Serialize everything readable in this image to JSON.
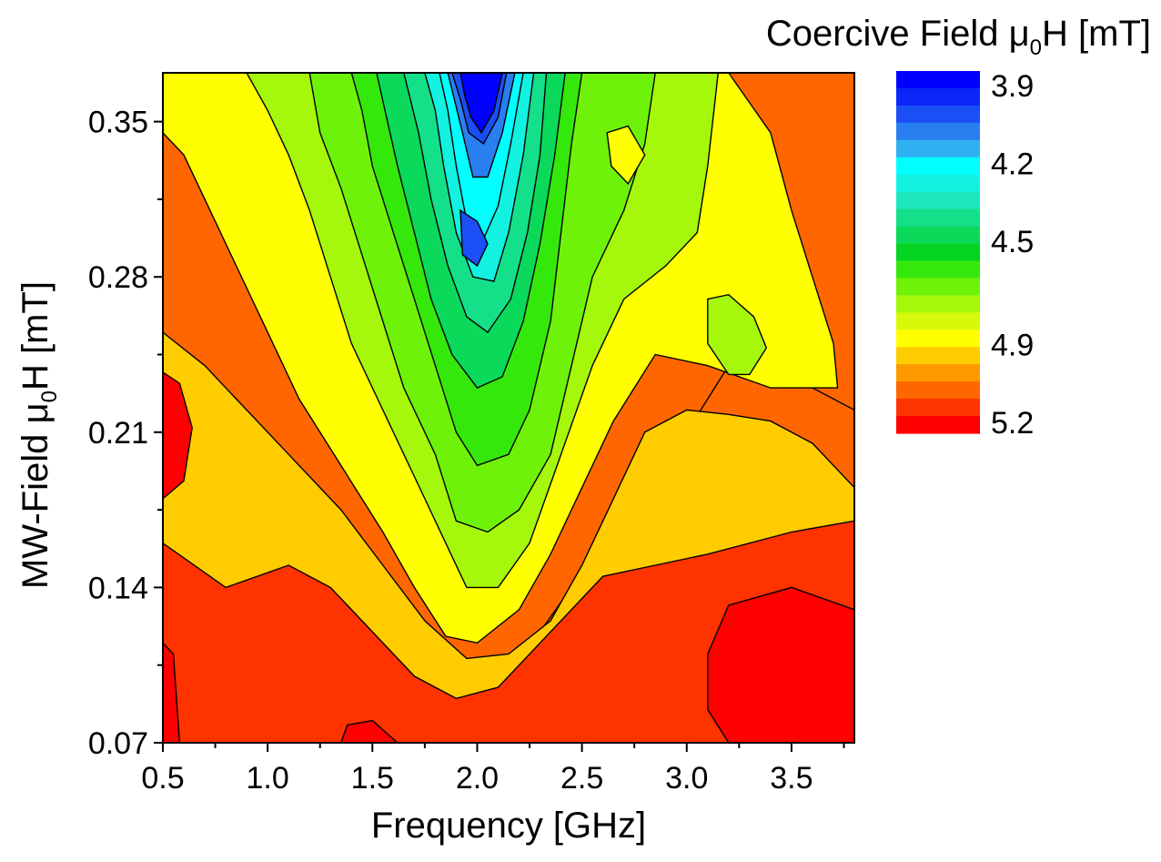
{
  "chart_data": {
    "type": "contour",
    "xlabel": "Frequency [GHz]",
    "ylabel": "MW-Field μ0H [mT]",
    "ylabel_parts": {
      "pre": "MW-Field μ",
      "sub": "0",
      "post": "H [mT]"
    },
    "xlim": [
      0.5,
      3.8
    ],
    "ylim": [
      0.07,
      0.372
    ],
    "xticks": [
      "0.5",
      "1.0",
      "1.5",
      "2.0",
      "2.5",
      "3.0",
      "3.5"
    ],
    "yticks": [
      "0.07",
      "0.14",
      "0.21",
      "0.28",
      "0.35"
    ],
    "colorbar": {
      "title": "Coercive Field μ0H [mT]",
      "title_parts": {
        "pre": "Coercive Field μ",
        "sub": "0",
        "post": "H [mT]"
      },
      "tick_labels": [
        "3.9",
        "4.2",
        "4.5",
        "4.9",
        "5.2"
      ],
      "range": [
        3.9,
        5.2
      ],
      "levels": 21,
      "colors": [
        "#0000ff",
        "#0c25f9",
        "#1b4ef4",
        "#2a7ff0",
        "#2fb0f1",
        "#00ffff",
        "#13f2e0",
        "#1ee7bd",
        "#14e08a",
        "#0ad95a",
        "#05d420",
        "#35e80c",
        "#6ef20a",
        "#a5f70b",
        "#d7fa0b",
        "#ffff00",
        "#ffcc00",
        "#ff9900",
        "#ff6600",
        "#ff3300",
        "#ff0000"
      ]
    },
    "regions": [
      {
        "level": 5.05,
        "path": [
          [
            0.5,
            0.07
          ],
          [
            3.8,
            0.07
          ],
          [
            3.8,
            0.22
          ],
          [
            3.6,
            0.23
          ],
          [
            3.4,
            0.25
          ],
          [
            3.2,
            0.24
          ],
          [
            3.0,
            0.21
          ],
          [
            2.8,
            0.19
          ],
          [
            2.6,
            0.16
          ],
          [
            2.45,
            0.14
          ],
          [
            2.3,
            0.12
          ],
          [
            2.1,
            0.1
          ],
          [
            1.9,
            0.1
          ],
          [
            1.7,
            0.11
          ],
          [
            1.5,
            0.13
          ],
          [
            1.3,
            0.16
          ],
          [
            1.0,
            0.18
          ],
          [
            0.8,
            0.2
          ],
          [
            0.5,
            0.21
          ]
        ]
      },
      {
        "level": 4.95,
        "path": [
          [
            0.5,
            0.07
          ],
          [
            3.8,
            0.07
          ],
          [
            3.8,
            0.185
          ],
          [
            3.6,
            0.205
          ],
          [
            3.4,
            0.215
          ],
          [
            3.2,
            0.218
          ],
          [
            3.0,
            0.22
          ],
          [
            2.8,
            0.21
          ],
          [
            2.65,
            0.18
          ],
          [
            2.5,
            0.15
          ],
          [
            2.35,
            0.125
          ],
          [
            2.15,
            0.11
          ],
          [
            1.95,
            0.108
          ],
          [
            1.75,
            0.125
          ],
          [
            1.55,
            0.15
          ],
          [
            1.35,
            0.175
          ],
          [
            1.1,
            0.2
          ],
          [
            0.9,
            0.22
          ],
          [
            0.7,
            0.24
          ],
          [
            0.5,
            0.255
          ]
        ]
      },
      {
        "level": 5.15,
        "path": [
          [
            0.5,
            0.07
          ],
          [
            3.8,
            0.07
          ],
          [
            3.8,
            0.17
          ],
          [
            3.5,
            0.165
          ],
          [
            3.1,
            0.155
          ],
          [
            2.85,
            0.15
          ],
          [
            2.6,
            0.145
          ],
          [
            2.35,
            0.12
          ],
          [
            2.1,
            0.095
          ],
          [
            1.9,
            0.09
          ],
          [
            1.7,
            0.1
          ],
          [
            1.5,
            0.12
          ],
          [
            1.3,
            0.14
          ],
          [
            1.1,
            0.15
          ],
          [
            0.8,
            0.14
          ],
          [
            0.5,
            0.16
          ]
        ]
      },
      {
        "level": 5.2,
        "path": [
          [
            3.2,
            0.07
          ],
          [
            3.8,
            0.07
          ],
          [
            3.8,
            0.13
          ],
          [
            3.5,
            0.14
          ],
          [
            3.2,
            0.132
          ],
          [
            3.1,
            0.11
          ],
          [
            3.1,
            0.085
          ]
        ]
      },
      {
        "level": 5.2,
        "path": [
          [
            1.35,
            0.07
          ],
          [
            1.62,
            0.07
          ],
          [
            1.5,
            0.08
          ],
          [
            1.38,
            0.078
          ]
        ]
      },
      {
        "level": 5.2,
        "path": [
          [
            0.5,
            0.18
          ],
          [
            0.6,
            0.188
          ],
          [
            0.64,
            0.212
          ],
          [
            0.58,
            0.232
          ],
          [
            0.5,
            0.237
          ]
        ]
      },
      {
        "level": 5.2,
        "path": [
          [
            0.5,
            0.07
          ],
          [
            0.58,
            0.07
          ],
          [
            0.55,
            0.11
          ],
          [
            0.5,
            0.115
          ]
        ]
      },
      {
        "level": 4.85,
        "path": [
          [
            0.6,
            0.372
          ],
          [
            3.2,
            0.372
          ],
          [
            3.4,
            0.345
          ],
          [
            3.5,
            0.31
          ],
          [
            3.6,
            0.28
          ],
          [
            3.7,
            0.25
          ],
          [
            3.72,
            0.23
          ],
          [
            3.4,
            0.23
          ],
          [
            3.1,
            0.24
          ],
          [
            2.85,
            0.245
          ],
          [
            2.65,
            0.215
          ],
          [
            2.5,
            0.185
          ],
          [
            2.35,
            0.155
          ],
          [
            2.2,
            0.13
          ],
          [
            2.0,
            0.115
          ],
          [
            1.85,
            0.118
          ],
          [
            1.7,
            0.14
          ],
          [
            1.55,
            0.165
          ],
          [
            1.35,
            0.195
          ],
          [
            1.15,
            0.225
          ],
          [
            1.0,
            0.255
          ],
          [
            0.85,
            0.285
          ],
          [
            0.7,
            0.315
          ],
          [
            0.6,
            0.335
          ],
          [
            0.5,
            0.345
          ],
          [
            0.5,
            0.372
          ]
        ]
      },
      {
        "level": 4.75,
        "path": [
          [
            0.9,
            0.372
          ],
          [
            3.15,
            0.372
          ],
          [
            3.1,
            0.33
          ],
          [
            3.05,
            0.3
          ],
          [
            2.9,
            0.285
          ],
          [
            2.7,
            0.27
          ],
          [
            2.55,
            0.24
          ],
          [
            2.4,
            0.2
          ],
          [
            2.25,
            0.16
          ],
          [
            2.1,
            0.14
          ],
          [
            1.95,
            0.14
          ],
          [
            1.85,
            0.16
          ],
          [
            1.7,
            0.19
          ],
          [
            1.55,
            0.22
          ],
          [
            1.4,
            0.25
          ],
          [
            1.3,
            0.28
          ],
          [
            1.2,
            0.31
          ],
          [
            1.1,
            0.335
          ],
          [
            1.0,
            0.355
          ]
        ]
      },
      {
        "level": 4.7,
        "path": [
          [
            1.2,
            0.372
          ],
          [
            2.85,
            0.372
          ],
          [
            2.8,
            0.34
          ],
          [
            2.7,
            0.31
          ],
          [
            2.55,
            0.28
          ],
          [
            2.45,
            0.24
          ],
          [
            2.35,
            0.2
          ],
          [
            2.2,
            0.175
          ],
          [
            2.05,
            0.165
          ],
          [
            1.9,
            0.17
          ],
          [
            1.8,
            0.2
          ],
          [
            1.65,
            0.23
          ],
          [
            1.55,
            0.26
          ],
          [
            1.45,
            0.29
          ],
          [
            1.35,
            0.32
          ],
          [
            1.25,
            0.345
          ]
        ]
      },
      {
        "level": 4.6,
        "path": [
          [
            1.4,
            0.372
          ],
          [
            2.5,
            0.372
          ],
          [
            2.45,
            0.34
          ],
          [
            2.4,
            0.3
          ],
          [
            2.35,
            0.26
          ],
          [
            2.25,
            0.22
          ],
          [
            2.15,
            0.2
          ],
          [
            2.0,
            0.195
          ],
          [
            1.9,
            0.21
          ],
          [
            1.8,
            0.24
          ],
          [
            1.7,
            0.27
          ],
          [
            1.6,
            0.3
          ],
          [
            1.5,
            0.33
          ],
          [
            1.45,
            0.355
          ]
        ]
      },
      {
        "level": 4.5,
        "path": [
          [
            1.52,
            0.372
          ],
          [
            2.42,
            0.372
          ],
          [
            2.37,
            0.335
          ],
          [
            2.3,
            0.295
          ],
          [
            2.22,
            0.26
          ],
          [
            2.12,
            0.235
          ],
          [
            2.0,
            0.23
          ],
          [
            1.88,
            0.245
          ],
          [
            1.78,
            0.27
          ],
          [
            1.7,
            0.3
          ],
          [
            1.62,
            0.33
          ],
          [
            1.56,
            0.355
          ]
        ]
      },
      {
        "level": 4.4,
        "path": [
          [
            1.65,
            0.372
          ],
          [
            2.33,
            0.372
          ],
          [
            2.3,
            0.335
          ],
          [
            2.24,
            0.3
          ],
          [
            2.16,
            0.27
          ],
          [
            2.05,
            0.255
          ],
          [
            1.95,
            0.262
          ],
          [
            1.86,
            0.285
          ],
          [
            1.78,
            0.315
          ],
          [
            1.72,
            0.345
          ]
        ]
      },
      {
        "level": 4.3,
        "path": [
          [
            1.75,
            0.372
          ],
          [
            2.27,
            0.372
          ],
          [
            2.22,
            0.335
          ],
          [
            2.15,
            0.3
          ],
          [
            2.08,
            0.278
          ],
          [
            1.98,
            0.28
          ],
          [
            1.9,
            0.3
          ],
          [
            1.84,
            0.33
          ],
          [
            1.8,
            0.355
          ]
        ]
      },
      {
        "level": 4.2,
        "path": [
          [
            1.82,
            0.372
          ],
          [
            2.22,
            0.372
          ],
          [
            2.16,
            0.34
          ],
          [
            2.1,
            0.312
          ],
          [
            2.02,
            0.295
          ],
          [
            1.95,
            0.305
          ],
          [
            1.9,
            0.33
          ],
          [
            1.86,
            0.355
          ]
        ]
      },
      {
        "level": 4.1,
        "path": [
          [
            1.86,
            0.372
          ],
          [
            2.18,
            0.372
          ],
          [
            2.12,
            0.345
          ],
          [
            2.05,
            0.325
          ],
          [
            1.98,
            0.325
          ],
          [
            1.93,
            0.345
          ]
        ]
      },
      {
        "level": 4.0,
        "path": [
          [
            1.88,
            0.372
          ],
          [
            2.14,
            0.372
          ],
          [
            2.1,
            0.352
          ],
          [
            2.03,
            0.34
          ],
          [
            1.96,
            0.345
          ],
          [
            1.92,
            0.36
          ]
        ]
      },
      {
        "level": 3.9,
        "path": [
          [
            1.92,
            0.372
          ],
          [
            2.12,
            0.372
          ],
          [
            2.08,
            0.355
          ],
          [
            2.02,
            0.345
          ],
          [
            1.97,
            0.352
          ],
          [
            1.94,
            0.362
          ]
        ]
      },
      {
        "level": 4.0,
        "path": [
          [
            1.92,
            0.31
          ],
          [
            2.0,
            0.305
          ],
          [
            2.05,
            0.295
          ],
          [
            2.0,
            0.285
          ],
          [
            1.93,
            0.29
          ]
        ]
      },
      {
        "level": 4.75,
        "path": [
          [
            3.1,
            0.27
          ],
          [
            3.2,
            0.272
          ],
          [
            3.32,
            0.262
          ],
          [
            3.38,
            0.248
          ],
          [
            3.3,
            0.236
          ],
          [
            3.2,
            0.236
          ],
          [
            3.1,
            0.25
          ]
        ]
      },
      {
        "level": 4.85,
        "path": [
          [
            2.62,
            0.345
          ],
          [
            2.72,
            0.348
          ],
          [
            2.8,
            0.335
          ],
          [
            2.72,
            0.322
          ],
          [
            2.64,
            0.33
          ]
        ]
      }
    ]
  }
}
